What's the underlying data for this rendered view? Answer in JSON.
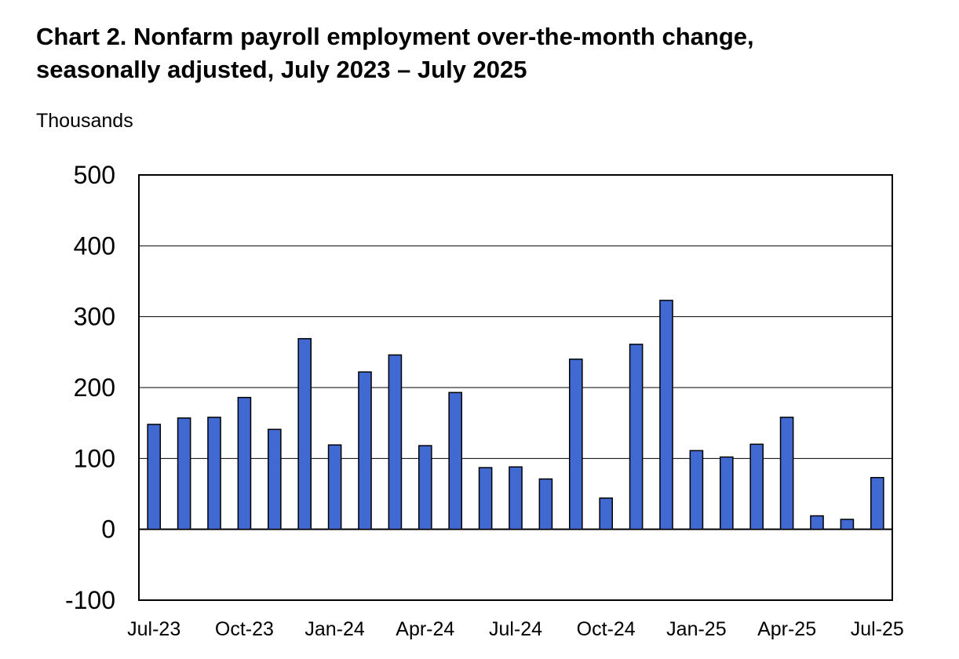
{
  "chart_data": {
    "type": "bar",
    "title_line1": "Chart 2. Nonfarm payroll employment over-the-month change,",
    "title_line2": "seasonally adjusted, July 2023 – July 2025",
    "unit_label": "Thousands",
    "ylim": [
      -100,
      500
    ],
    "yticks": [
      500,
      400,
      300,
      200,
      100,
      0,
      -100
    ],
    "x_tick_labels": [
      "Jul-23",
      "Oct-23",
      "Jan-24",
      "Apr-24",
      "Jul-24",
      "Oct-24",
      "Jan-25",
      "Apr-25",
      "Jul-25"
    ],
    "categories": [
      "Jul-23",
      "Aug-23",
      "Sep-23",
      "Oct-23",
      "Nov-23",
      "Dec-23",
      "Jan-24",
      "Feb-24",
      "Mar-24",
      "Apr-24",
      "May-24",
      "Jun-24",
      "Jul-24",
      "Aug-24",
      "Sep-24",
      "Oct-24",
      "Nov-24",
      "Dec-24",
      "Jan-25",
      "Feb-25",
      "Mar-25",
      "Apr-25",
      "May-25",
      "Jun-25",
      "Jul-25"
    ],
    "values": [
      148,
      157,
      158,
      186,
      141,
      269,
      119,
      222,
      246,
      118,
      193,
      87,
      88,
      71,
      240,
      44,
      261,
      323,
      111,
      102,
      120,
      158,
      19,
      14,
      73
    ],
    "bar_color": "#4169D2",
    "grid": true
  }
}
